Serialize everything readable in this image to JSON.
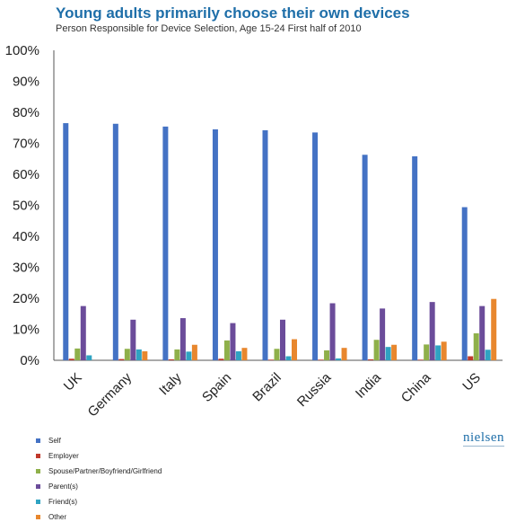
{
  "page": {
    "title": "Young adults primarily choose their own devices",
    "subtitle": "Person Responsible for Device Selection, Age 15-24 First half of 2010",
    "logo": "nielsen"
  },
  "chart_data": {
    "type": "bar",
    "title": "Young adults primarily choose their own devices",
    "subtitle": "Person Responsible for Device Selection, Age 15-24 First half of 2010",
    "xlabel": "",
    "ylabel": "",
    "ylim": [
      0,
      100
    ],
    "yticks": [
      "0%",
      "10%",
      "20%",
      "30%",
      "40%",
      "50%",
      "60%",
      "70%",
      "80%",
      "90%",
      "100%"
    ],
    "grid": false,
    "legend_position": "bottom-left",
    "categories": [
      "UK",
      "Germany",
      "Italy",
      "Spain",
      "Brazil",
      "Russia",
      "India",
      "China",
      "US"
    ],
    "series": [
      {
        "name": "Self",
        "color": "#4472c4",
        "values": [
          76.5,
          76.3,
          75.4,
          74.5,
          74.2,
          73.5,
          66.3,
          65.8,
          49.4
        ]
      },
      {
        "name": "Employer",
        "color": "#c0392b",
        "values": [
          0.5,
          0.4,
          0.3,
          0.5,
          0.2,
          0.2,
          0.3,
          0.2,
          1.3
        ]
      },
      {
        "name": "Spouse/Partner/Boyfriend/Girlfriend",
        "color": "#8fb04a",
        "values": [
          3.8,
          3.7,
          3.5,
          6.4,
          3.7,
          3.2,
          6.6,
          5.1,
          8.7
        ]
      },
      {
        "name": "Parent(s)",
        "color": "#6b4c9a",
        "values": [
          17.5,
          13.1,
          13.6,
          12.0,
          13.1,
          18.4,
          16.7,
          18.8,
          17.5
        ]
      },
      {
        "name": "Friend(s)",
        "color": "#2fa3c2",
        "values": [
          1.6,
          3.5,
          2.8,
          2.9,
          1.3,
          0.6,
          4.3,
          4.8,
          3.4
        ]
      },
      {
        "name": "Other",
        "color": "#e8872e",
        "values": [
          0.0,
          2.9,
          5.0,
          4.0,
          6.8,
          4.0,
          5.0,
          6.0,
          19.8
        ]
      }
    ]
  }
}
